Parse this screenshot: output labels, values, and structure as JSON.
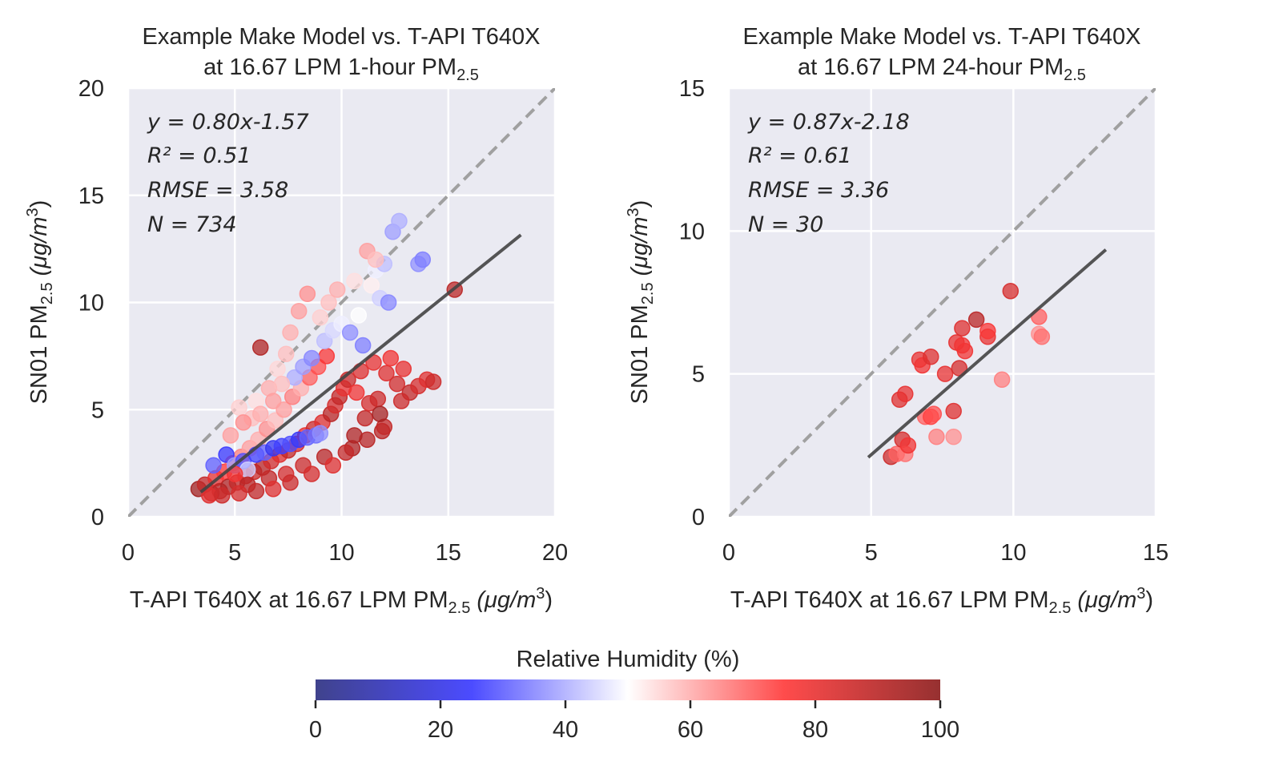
{
  "colorbar": {
    "label": "Relative Humidity (%)",
    "ticks": [
      0,
      20,
      40,
      60,
      80,
      100
    ],
    "range": [
      0,
      100
    ],
    "colors": [
      "#2b2e80",
      "#3838ff",
      "#ffffff",
      "#ff3838",
      "#8b1a1a"
    ]
  },
  "chart_data": [
    {
      "type": "scatter",
      "title_line1": "Example Make Model vs. T-API T640X",
      "title_line2_prefix": "at 16.67 LPM 1-hour PM",
      "title_sub": "2.5",
      "xlabel_prefix": "T-API T640X at 16.67 LPM PM",
      "xlabel_sub": "2.5",
      "xlabel_suffix": " (μg/m",
      "xlabel_sup": "3",
      "xlabel_end": ")",
      "ylabel_prefix": "SN01 PM",
      "ylabel_sub": "2.5",
      "ylabel_suffix": " (μg/m",
      "ylabel_sup": "3",
      "ylabel_end": ")",
      "xlim": [
        0,
        20
      ],
      "ylim": [
        0,
        20
      ],
      "xticks": [
        0,
        5,
        10,
        15,
        20
      ],
      "yticks": [
        0,
        5,
        10,
        15,
        20
      ],
      "grid": true,
      "stats": {
        "equation": "y = 0.80x-1.57",
        "r2": "R² = 0.51",
        "rmse": "RMSE = 3.58",
        "n": "N = 734"
      },
      "fit": {
        "slope": 0.8,
        "intercept": -1.57,
        "x_range": [
          3.4,
          18.4
        ]
      },
      "one_to_one": true,
      "points": [
        [
          3.3,
          1.3,
          95
        ],
        [
          3.6,
          1.5,
          88
        ],
        [
          3.9,
          1.1,
          85
        ],
        [
          4.1,
          1.8,
          80
        ],
        [
          4.3,
          1.2,
          90
        ],
        [
          4.5,
          2.1,
          75
        ],
        [
          4.7,
          1.4,
          92
        ],
        [
          4.9,
          2.5,
          70
        ],
        [
          5.1,
          1.6,
          88
        ],
        [
          5.3,
          2.8,
          66
        ],
        [
          5.5,
          1.9,
          84
        ],
        [
          5.7,
          3.2,
          62
        ],
        [
          5.9,
          2.1,
          86
        ],
        [
          6.1,
          3.6,
          60
        ],
        [
          6.3,
          2.3,
          90
        ],
        [
          6.5,
          4.1,
          64
        ],
        [
          6.7,
          2.6,
          85
        ],
        [
          6.9,
          4.5,
          58
        ],
        [
          7.1,
          2.9,
          82
        ],
        [
          7.3,
          5.0,
          62
        ],
        [
          7.5,
          3.1,
          88
        ],
        [
          7.7,
          5.6,
          66
        ],
        [
          7.9,
          3.4,
          84
        ],
        [
          8.1,
          6.0,
          60
        ],
        [
          8.3,
          3.8,
          80
        ],
        [
          8.5,
          6.5,
          70
        ],
        [
          8.7,
          4.1,
          86
        ],
        [
          8.9,
          7.0,
          72
        ],
        [
          9.1,
          4.4,
          82
        ],
        [
          9.3,
          7.5,
          76
        ],
        [
          9.5,
          4.8,
          90
        ],
        [
          9.7,
          5.2,
          84
        ],
        [
          9.9,
          5.6,
          88
        ],
        [
          10.1,
          6.0,
          80
        ],
        [
          10.3,
          6.4,
          86
        ],
        [
          10.5,
          3.2,
          92
        ],
        [
          10.7,
          5.8,
          78
        ],
        [
          10.9,
          6.8,
          82
        ],
        [
          11.1,
          4.6,
          88
        ],
        [
          11.3,
          5.3,
          84
        ],
        [
          11.5,
          7.2,
          80
        ],
        [
          11.7,
          5.5,
          86
        ],
        [
          11.9,
          4.0,
          90
        ],
        [
          12.1,
          6.7,
          82
        ],
        [
          12.3,
          7.4,
          78
        ],
        [
          12.6,
          6.2,
          85
        ],
        [
          12.9,
          6.9,
          80
        ],
        [
          13.2,
          5.8,
          88
        ],
        [
          13.6,
          6.1,
          84
        ],
        [
          14.0,
          6.4,
          82
        ],
        [
          14.3,
          6.3,
          86
        ],
        [
          15.3,
          10.6,
          90
        ],
        [
          6.2,
          7.9,
          92
        ],
        [
          4.0,
          2.4,
          30
        ],
        [
          4.6,
          2.9,
          25
        ],
        [
          5.0,
          2.4,
          38
        ],
        [
          5.4,
          2.6,
          28
        ],
        [
          5.6,
          2.2,
          44
        ],
        [
          6.0,
          2.9,
          26
        ],
        [
          6.4,
          3.0,
          30
        ],
        [
          6.8,
          3.2,
          22
        ],
        [
          7.2,
          3.3,
          26
        ],
        [
          7.6,
          3.4,
          28
        ],
        [
          8.0,
          3.6,
          24
        ],
        [
          8.4,
          3.7,
          30
        ],
        [
          8.8,
          3.8,
          32
        ],
        [
          9.0,
          3.9,
          36
        ],
        [
          7.8,
          6.5,
          40
        ],
        [
          8.2,
          7.0,
          38
        ],
        [
          8.6,
          7.4,
          35
        ],
        [
          9.2,
          8.2,
          42
        ],
        [
          9.6,
          8.7,
          45
        ],
        [
          10.0,
          9.0,
          48
        ],
        [
          10.4,
          8.6,
          36
        ],
        [
          10.8,
          9.4,
          50
        ],
        [
          11.0,
          8.0,
          34
        ],
        [
          11.4,
          10.8,
          52
        ],
        [
          11.6,
          11.5,
          48
        ],
        [
          11.8,
          10.2,
          44
        ],
        [
          12.0,
          11.8,
          42
        ],
        [
          12.2,
          10.0,
          35
        ],
        [
          12.4,
          13.3,
          38
        ],
        [
          12.7,
          13.8,
          40
        ],
        [
          13.6,
          11.8,
          36
        ],
        [
          13.8,
          12.0,
          34
        ],
        [
          5.2,
          5.1,
          56
        ],
        [
          5.8,
          4.6,
          58
        ],
        [
          6.0,
          5.4,
          54
        ],
        [
          6.6,
          6.0,
          60
        ],
        [
          7.0,
          6.9,
          55
        ],
        [
          7.4,
          7.6,
          58
        ],
        [
          7.6,
          8.6,
          60
        ],
        [
          8.0,
          9.6,
          62
        ],
        [
          8.4,
          10.4,
          64
        ],
        [
          9.0,
          9.3,
          56
        ],
        [
          9.4,
          10.0,
          58
        ],
        [
          9.8,
          10.6,
          60
        ],
        [
          10.6,
          11.0,
          54
        ],
        [
          11.2,
          12.4,
          62
        ],
        [
          11.6,
          12.0,
          58
        ],
        [
          4.8,
          3.8,
          62
        ],
        [
          5.4,
          4.4,
          64
        ],
        [
          6.2,
          4.8,
          60
        ],
        [
          6.8,
          5.4,
          62
        ],
        [
          7.2,
          6.2,
          58
        ],
        [
          5.0,
          2.0,
          78
        ],
        [
          5.6,
          1.5,
          90
        ],
        [
          6.6,
          1.8,
          88
        ],
        [
          7.4,
          2.0,
          84
        ],
        [
          8.2,
          2.4,
          86
        ],
        [
          9.2,
          2.8,
          90
        ],
        [
          10.2,
          3.0,
          88
        ],
        [
          11.2,
          3.6,
          90
        ],
        [
          12.0,
          4.2,
          88
        ],
        [
          12.8,
          5.4,
          86
        ],
        [
          3.8,
          1.0,
          82
        ],
        [
          4.4,
          1.0,
          86
        ],
        [
          5.2,
          1.1,
          84
        ],
        [
          6.0,
          1.2,
          88
        ],
        [
          6.8,
          1.3,
          82
        ],
        [
          7.6,
          1.6,
          86
        ],
        [
          8.6,
          2.0,
          84
        ],
        [
          9.6,
          2.4,
          82
        ],
        [
          10.6,
          3.8,
          92
        ],
        [
          11.8,
          4.8,
          94
        ]
      ]
    },
    {
      "type": "scatter",
      "title_line1": "Example Make Model vs. T-API T640X",
      "title_line2_prefix": "at 16.67 LPM 24-hour PM",
      "title_sub": "2.5",
      "xlabel_prefix": "T-API T640X at 16.67 LPM PM",
      "xlabel_sub": "2.5",
      "xlabel_suffix": " (μg/m",
      "xlabel_sup": "3",
      "xlabel_end": ")",
      "ylabel_prefix": "SN01 PM",
      "ylabel_sub": "2.5",
      "ylabel_suffix": " (μg/m",
      "ylabel_sup": "3",
      "ylabel_end": ")",
      "xlim": [
        0,
        15
      ],
      "ylim": [
        0,
        15
      ],
      "xticks": [
        0,
        5,
        10,
        15
      ],
      "yticks": [
        0,
        5,
        10,
        15
      ],
      "grid": true,
      "stats": {
        "equation": "y = 0.87x-2.18",
        "r2": "R² = 0.61",
        "rmse": "RMSE = 3.36",
        "n": "N = 30"
      },
      "fit": {
        "slope": 0.87,
        "intercept": -2.18,
        "x_range": [
          4.9,
          13.25
        ]
      },
      "one_to_one": true,
      "points": [
        [
          5.7,
          2.1,
          86
        ],
        [
          5.9,
          2.2,
          70
        ],
        [
          6.0,
          4.1,
          82
        ],
        [
          6.1,
          2.7,
          84
        ],
        [
          6.2,
          2.2,
          68
        ],
        [
          6.2,
          4.3,
          80
        ],
        [
          6.3,
          2.5,
          78
        ],
        [
          6.7,
          5.5,
          80
        ],
        [
          6.8,
          5.3,
          78
        ],
        [
          6.9,
          3.5,
          70
        ],
        [
          7.1,
          3.5,
          74
        ],
        [
          7.1,
          5.6,
          82
        ],
        [
          7.2,
          3.6,
          72
        ],
        [
          7.3,
          2.8,
          66
        ],
        [
          7.6,
          5.0,
          80
        ],
        [
          7.9,
          3.7,
          82
        ],
        [
          7.9,
          2.8,
          64
        ],
        [
          8.0,
          6.1,
          80
        ],
        [
          8.1,
          5.2,
          84
        ],
        [
          8.2,
          6.6,
          82
        ],
        [
          8.3,
          5.8,
          78
        ],
        [
          8.7,
          6.9,
          90
        ],
        [
          9.1,
          6.3,
          80
        ],
        [
          9.1,
          6.5,
          76
        ],
        [
          9.6,
          4.8,
          66
        ],
        [
          9.9,
          7.9,
          84
        ],
        [
          10.9,
          7.0,
          70
        ],
        [
          10.9,
          6.4,
          64
        ],
        [
          11.0,
          6.3,
          68
        ],
        [
          8.2,
          6.0,
          78
        ]
      ]
    }
  ]
}
